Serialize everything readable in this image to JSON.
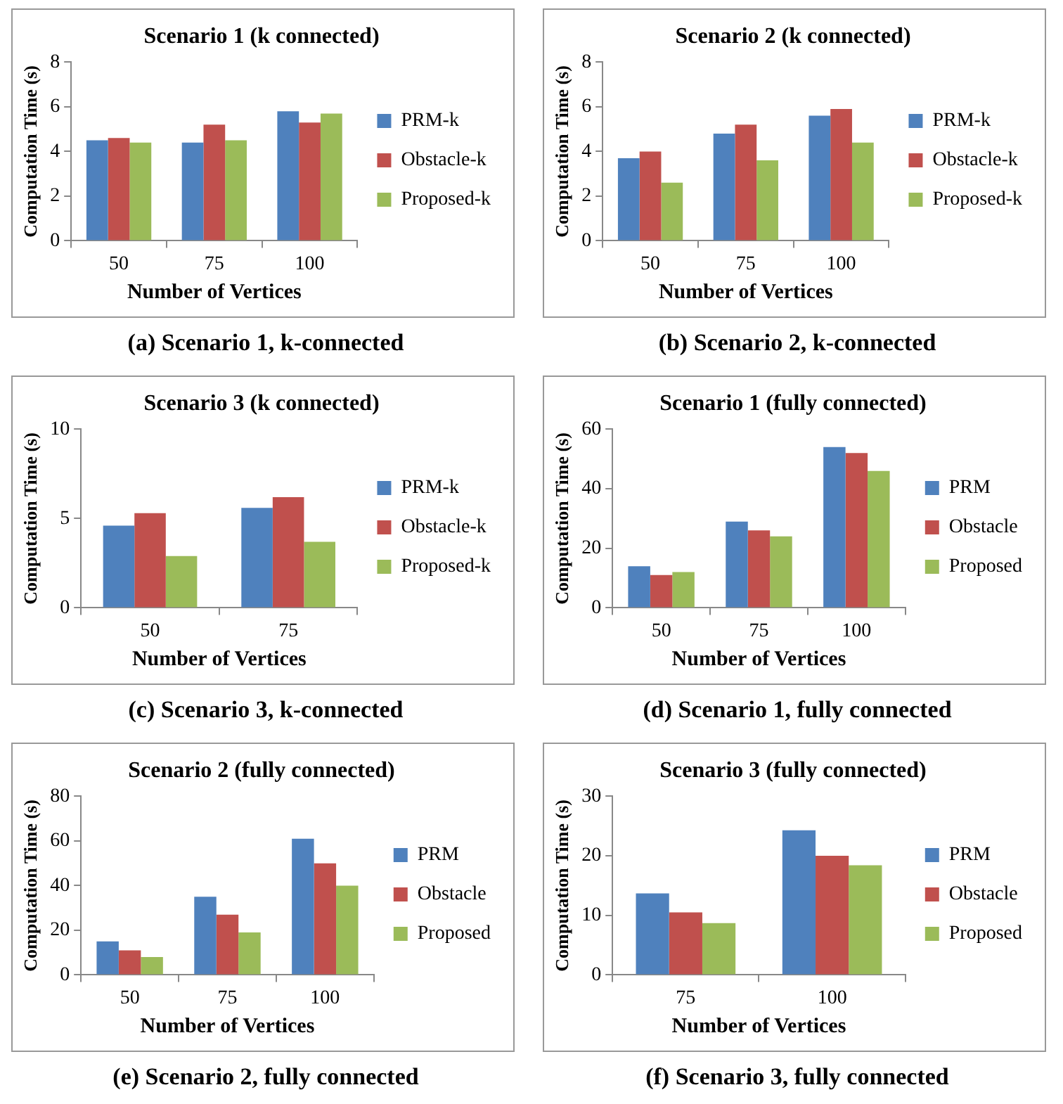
{
  "chart_data": [
    {
      "type": "bar",
      "title": "Scenario 1 (k connected)",
      "xlabel": "Number of Vertices",
      "ylabel": "Computation Time (s)",
      "categories": [
        "50",
        "75",
        "100"
      ],
      "series": [
        {
          "name": "PRM-k",
          "color": "#4f81bd",
          "values": [
            4.5,
            4.4,
            5.8
          ]
        },
        {
          "name": "Obstacle-k",
          "color": "#c0504d",
          "values": [
            4.6,
            5.2,
            5.3
          ]
        },
        {
          "name": "Proposed-k",
          "color": "#9bbb59",
          "values": [
            4.4,
            4.5,
            5.7
          ]
        }
      ],
      "ylim": [
        0,
        8
      ],
      "yticks": [
        0,
        2,
        4,
        6,
        8
      ],
      "grid": false,
      "legend": "right",
      "annotations": [
        "(a) Scenario 1, k-connected"
      ]
    },
    {
      "type": "bar",
      "title": "Scenario 2 (k connected)",
      "xlabel": "Number of Vertices",
      "ylabel": "Computation Time (s)",
      "categories": [
        "50",
        "75",
        "100"
      ],
      "series": [
        {
          "name": "PRM-k",
          "color": "#4f81bd",
          "values": [
            3.7,
            4.8,
            5.6
          ]
        },
        {
          "name": "Obstacle-k",
          "color": "#c0504d",
          "values": [
            4.0,
            5.2,
            5.9
          ]
        },
        {
          "name": "Proposed-k",
          "color": "#9bbb59",
          "values": [
            2.6,
            3.6,
            4.4
          ]
        }
      ],
      "ylim": [
        0,
        8
      ],
      "yticks": [
        0,
        2,
        4,
        6,
        8
      ],
      "grid": false,
      "legend": "right",
      "annotations": [
        "(b) Scenario 2, k-connected"
      ]
    },
    {
      "type": "bar",
      "title": "Scenario 3 (k connected)",
      "xlabel": "Number of Vertices",
      "ylabel": "Computation Time (s)",
      "categories": [
        "50",
        "75"
      ],
      "series": [
        {
          "name": "PRM-k",
          "color": "#4f81bd",
          "values": [
            4.6,
            5.6
          ]
        },
        {
          "name": "Obstacle-k",
          "color": "#c0504d",
          "values": [
            5.3,
            6.2
          ]
        },
        {
          "name": "Proposed-k",
          "color": "#9bbb59",
          "values": [
            2.9,
            3.7
          ]
        }
      ],
      "ylim": [
        0,
        10
      ],
      "yticks": [
        0,
        5,
        10
      ],
      "grid": false,
      "legend": "right",
      "annotations": [
        "(c) Scenario 3, k-connected"
      ]
    },
    {
      "type": "bar",
      "title": "Scenario 1 (fully connected)",
      "xlabel": "Number of Vertices",
      "ylabel": "Computation Time (s)",
      "categories": [
        "50",
        "75",
        "100"
      ],
      "series": [
        {
          "name": "PRM",
          "color": "#4f81bd",
          "values": [
            14,
            29,
            54
          ]
        },
        {
          "name": "Obstacle",
          "color": "#c0504d",
          "values": [
            11,
            26,
            52
          ]
        },
        {
          "name": "Proposed",
          "color": "#9bbb59",
          "values": [
            12,
            24,
            46
          ]
        }
      ],
      "ylim": [
        0,
        60
      ],
      "yticks": [
        0,
        20,
        40,
        60
      ],
      "grid": false,
      "legend": "right",
      "annotations": [
        "(d) Scenario 1, fully connected"
      ]
    },
    {
      "type": "bar",
      "title": "Scenario 2 (fully connected)",
      "xlabel": "Number of Vertices",
      "ylabel": "Computation Time (s)",
      "categories": [
        "50",
        "75",
        "100"
      ],
      "series": [
        {
          "name": "PRM",
          "color": "#4f81bd",
          "values": [
            15,
            35,
            61
          ]
        },
        {
          "name": "Obstacle",
          "color": "#c0504d",
          "values": [
            11,
            27,
            50
          ]
        },
        {
          "name": "Proposed",
          "color": "#9bbb59",
          "values": [
            8,
            19,
            40
          ]
        }
      ],
      "ylim": [
        0,
        80
      ],
      "yticks": [
        0,
        20,
        40,
        60,
        80
      ],
      "grid": false,
      "legend": "right",
      "annotations": [
        "(e) Scenario 2, fully connected"
      ]
    },
    {
      "type": "bar",
      "title": "Scenario 3 (fully connected)",
      "xlabel": "Number of Vertices",
      "ylabel": "Computation Time (s)",
      "categories": [
        "75",
        "100"
      ],
      "series": [
        {
          "name": "PRM",
          "color": "#4f81bd",
          "values": [
            13.7,
            24.3
          ]
        },
        {
          "name": "Obstacle",
          "color": "#c0504d",
          "values": [
            10.5,
            20
          ]
        },
        {
          "name": "Proposed",
          "color": "#9bbb59",
          "values": [
            8.7,
            18.4
          ]
        }
      ],
      "ylim": [
        0,
        30
      ],
      "yticks": [
        0,
        10,
        20,
        30
      ],
      "grid": false,
      "legend": "right",
      "annotations": [
        "(f) Scenario 3, fully connected"
      ]
    }
  ]
}
